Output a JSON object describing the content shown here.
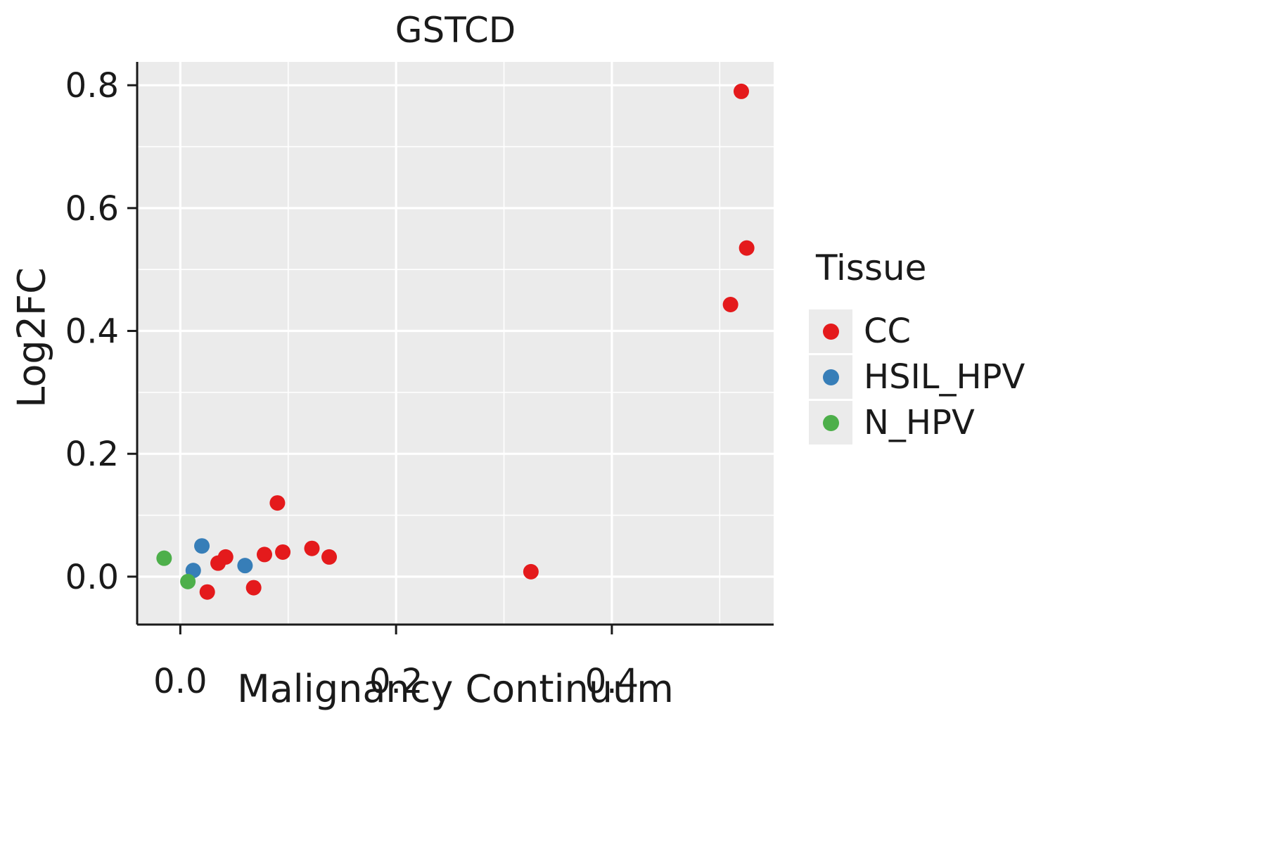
{
  "chart": {
    "title": "GSTCD",
    "xlabel": "Malignancy Continuum",
    "ylabel": "Log2FC",
    "legend_title": "Tissue"
  },
  "chart_data": {
    "type": "scatter",
    "title": "GSTCD",
    "xlabel": "Malignancy Continuum",
    "ylabel": "Log2FC",
    "legend_title": "Tissue",
    "legend_position": "right",
    "grid": true,
    "panel_background": "#EBEBEB",
    "grid_color": "#FFFFFF",
    "axis_color": "#1a1a1a",
    "xlim": [
      -0.04,
      0.55
    ],
    "ylim": [
      -0.078,
      0.838
    ],
    "x_major_ticks": [
      0.0,
      0.2,
      0.4
    ],
    "x_tick_labels": [
      "0.0",
      "0.2",
      "0.4"
    ],
    "x_minor_ticks": [
      0.1,
      0.3,
      0.5
    ],
    "y_major_ticks": [
      0.0,
      0.2,
      0.4,
      0.6,
      0.8
    ],
    "y_tick_labels": [
      "0.0",
      "0.2",
      "0.4",
      "0.6",
      "0.8"
    ],
    "y_minor_ticks": [
      0.1,
      0.3,
      0.5,
      0.7
    ],
    "series": [
      {
        "name": "CC",
        "color": "#E41A1C",
        "points": [
          [
            0.52,
            0.79
          ],
          [
            0.525,
            0.535
          ],
          [
            0.51,
            0.443
          ],
          [
            0.325,
            0.008
          ],
          [
            0.09,
            0.12
          ],
          [
            0.122,
            0.046
          ],
          [
            0.138,
            0.032
          ],
          [
            0.095,
            0.04
          ],
          [
            0.078,
            0.036
          ],
          [
            0.042,
            0.032
          ],
          [
            0.035,
            0.022
          ],
          [
            0.025,
            -0.025
          ],
          [
            0.068,
            -0.018
          ]
        ]
      },
      {
        "name": "HSIL_HPV",
        "color": "#377EB8",
        "points": [
          [
            0.02,
            0.05
          ],
          [
            0.012,
            0.01
          ],
          [
            0.06,
            0.018
          ]
        ]
      },
      {
        "name": "N_HPV",
        "color": "#4DAF4A",
        "points": [
          [
            -0.015,
            0.03
          ],
          [
            0.007,
            -0.008
          ]
        ]
      }
    ]
  }
}
